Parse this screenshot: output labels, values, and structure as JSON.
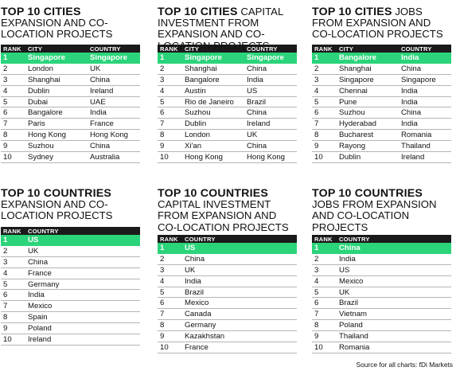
{
  "blocks": [
    {
      "title_bold": "TOP 10 CITIES",
      "title_rest": "EXPANSION AND CO-LOCATION PROJECTS",
      "headers": [
        "RANK",
        "CITY",
        "COUNTRY"
      ],
      "rows": [
        [
          "1",
          "Singapore",
          "Singapore"
        ],
        [
          "2",
          "London",
          "UK"
        ],
        [
          "3",
          "Shanghai",
          "China"
        ],
        [
          "4",
          "Dublin",
          "Ireland"
        ],
        [
          "5",
          "Dubai",
          "UAE"
        ],
        [
          "6",
          "Bangalore",
          "India"
        ],
        [
          "7",
          "Paris",
          "France"
        ],
        [
          "8",
          "Hong Kong",
          "Hong Kong"
        ],
        [
          "9",
          "Suzhou",
          "China"
        ],
        [
          "10",
          "Sydney",
          "Australia"
        ]
      ]
    },
    {
      "title_bold": "TOP 10 CITIES",
      "title_rest": "CAPITAL INVESTMENT FROM EXPANSION AND CO-LOCATION PROJECTS",
      "headers": [
        "RANK",
        "CITY",
        "COUNTRY"
      ],
      "rows": [
        [
          "1",
          "Singapore",
          "Singapore"
        ],
        [
          "2",
          "Shanghai",
          "China"
        ],
        [
          "3",
          "Bangalore",
          "India"
        ],
        [
          "4",
          "Austin",
          "US"
        ],
        [
          "5",
          "Rio de Janeiro",
          "Brazil"
        ],
        [
          "6",
          "Suzhou",
          "China"
        ],
        [
          "7",
          "Dublin",
          "Ireland"
        ],
        [
          "8",
          "London",
          "UK"
        ],
        [
          "9",
          "Xi'an",
          "China"
        ],
        [
          "10",
          "Hong Kong",
          "Hong Kong"
        ]
      ]
    },
    {
      "title_bold": "TOP 10 CITIES",
      "title_rest": "JOBS FROM EXPANSION AND CO-LOCATION PROJECTS",
      "headers": [
        "RANK",
        "CITY",
        "COUNTRY"
      ],
      "rows": [
        [
          "1",
          "Bangalore",
          "India"
        ],
        [
          "2",
          "Shanghai",
          "China"
        ],
        [
          "3",
          "Singapore",
          "Singapore"
        ],
        [
          "4",
          "Chennai",
          "India"
        ],
        [
          "5",
          "Pune",
          "India"
        ],
        [
          "6",
          "Suzhou",
          "China"
        ],
        [
          "7",
          "Hyderabad",
          "India"
        ],
        [
          "8",
          "Bucharest",
          "Romania"
        ],
        [
          "9",
          "Rayong",
          "Thailand"
        ],
        [
          "10",
          "Dublin",
          "Ireland"
        ]
      ]
    },
    {
      "title_bold": "TOP 10 COUNTRIES",
      "title_rest": "EXPANSION AND CO-LOCATION PROJECTS",
      "headers": [
        "RANK",
        "COUNTRY"
      ],
      "rows": [
        [
          "1",
          "US"
        ],
        [
          "2",
          "UK"
        ],
        [
          "3",
          "China"
        ],
        [
          "4",
          "France"
        ],
        [
          "5",
          "Germany"
        ],
        [
          "6",
          "India"
        ],
        [
          "7",
          "Mexico"
        ],
        [
          "8",
          "Spain"
        ],
        [
          "9",
          "Poland"
        ],
        [
          "10",
          "Ireland"
        ]
      ]
    },
    {
      "title_bold": "TOP 10 COUNTRIES",
      "title_rest": "CAPITAL INVESTMENT FROM EXPANSION AND CO-LOCATION PROJECTS",
      "headers": [
        "RANK",
        "COUNTRY"
      ],
      "rows": [
        [
          "1",
          "US"
        ],
        [
          "2",
          "China"
        ],
        [
          "3",
          "UK"
        ],
        [
          "4",
          "India"
        ],
        [
          "5",
          "Brazil"
        ],
        [
          "6",
          "Mexico"
        ],
        [
          "7",
          "Canada"
        ],
        [
          "8",
          "Germany"
        ],
        [
          "9",
          "Kazakhstan"
        ],
        [
          "10",
          "France"
        ]
      ]
    },
    {
      "title_bold": "TOP 10 COUNTRIES",
      "title_rest": "JOBS FROM EXPANSION AND CO-LOCATION PROJECTS",
      "headers": [
        "RANK",
        "COUNTRY"
      ],
      "rows": [
        [
          "1",
          "China"
        ],
        [
          "2",
          "India"
        ],
        [
          "3",
          "US"
        ],
        [
          "4",
          "Mexico"
        ],
        [
          "5",
          "UK"
        ],
        [
          "6",
          "Brazil"
        ],
        [
          "7",
          "Vietnam"
        ],
        [
          "8",
          "Poland"
        ],
        [
          "9",
          "Thailand"
        ],
        [
          "10",
          "Romania"
        ]
      ]
    }
  ],
  "source": "Source for all charts: fDi Markets",
  "colors": {
    "highlight": "#2bd47a",
    "header": "#1a1a1a"
  }
}
